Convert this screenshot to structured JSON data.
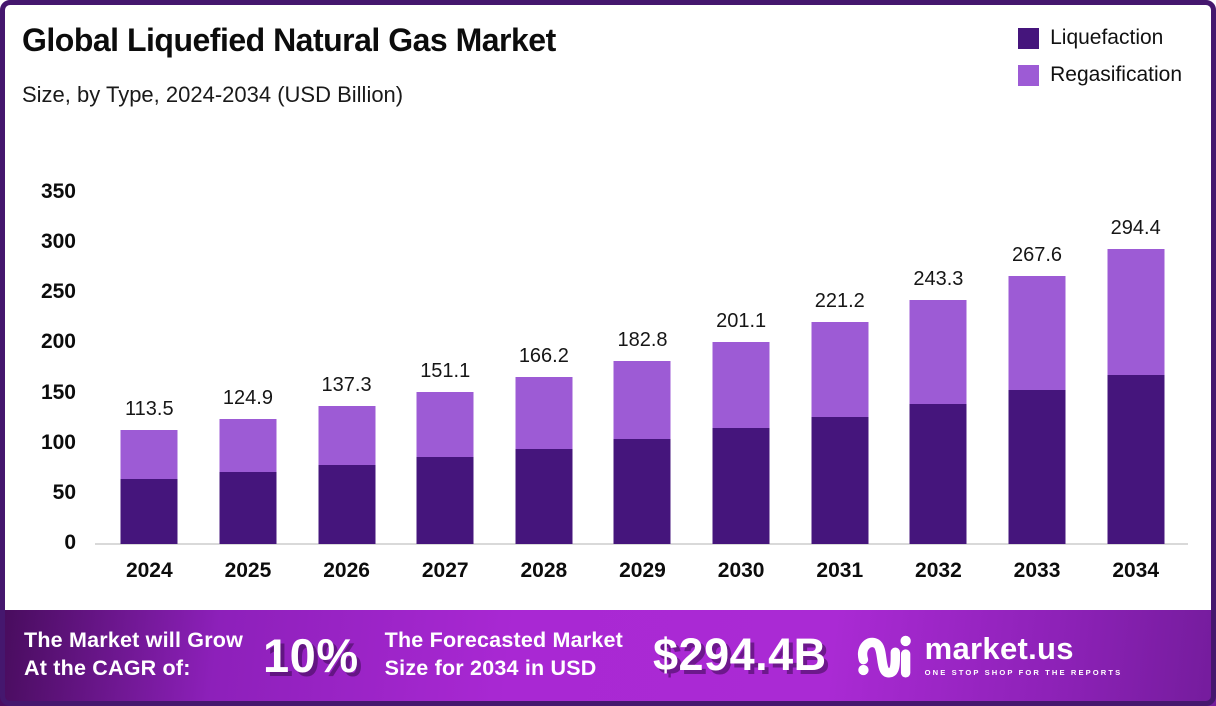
{
  "header": {
    "title": "Global Liquefied Natural Gas Market",
    "subtitle": "Size, by Type, 2024-2034 (USD Billion)"
  },
  "legend": {
    "items": [
      {
        "label": "Liquefaction",
        "color": "#45157c"
      },
      {
        "label": "Regasification",
        "color": "#9d5bd5"
      }
    ]
  },
  "chart_data": {
    "type": "bar",
    "stacked": true,
    "title": "Global Liquefied Natural Gas Market Size, by Type, 2024-2034 (USD Billion)",
    "categories": [
      "2024",
      "2025",
      "2026",
      "2027",
      "2028",
      "2029",
      "2030",
      "2031",
      "2032",
      "2033",
      "2034"
    ],
    "series": [
      {
        "name": "Liquefaction",
        "color": "#45157c",
        "values": [
          65.0,
          71.5,
          78.7,
          86.5,
          95.2,
          104.7,
          115.2,
          126.7,
          139.4,
          153.3,
          168.6
        ]
      },
      {
        "name": "Regasification",
        "color": "#9d5bd5",
        "values": [
          48.5,
          53.4,
          58.6,
          64.6,
          71.0,
          78.1,
          85.9,
          94.5,
          103.9,
          114.3,
          125.8
        ]
      }
    ],
    "totals": [
      113.5,
      124.9,
      137.3,
      151.1,
      166.2,
      182.8,
      201.1,
      221.2,
      243.3,
      267.6,
      294.4
    ],
    "total_labels": [
      "113.5",
      "124.9",
      "137.3",
      "151.1",
      "166.2",
      "182.8",
      "201.1",
      "221.2",
      "243.3",
      "267.6",
      "294.4"
    ],
    "xlabel": "",
    "ylabel": "USD Billion",
    "ylim": [
      0,
      350
    ],
    "yticks": [
      0,
      50,
      100,
      150,
      200,
      250,
      300,
      350
    ],
    "grid": false,
    "legend_position": "top-right"
  },
  "banner": {
    "cagr_label_line1": "The Market will Grow",
    "cagr_label_line2": "At the CAGR of:",
    "cagr_value": "10%",
    "forecast_label_line1": "The Forecasted Market",
    "forecast_label_line2": "Size for 2034 in USD",
    "forecast_value": "$294.4B",
    "brand": {
      "name": "market.us",
      "tagline": "ONE STOP SHOP FOR THE REPORTS"
    }
  },
  "frame": {
    "border_color": "#45176e"
  }
}
